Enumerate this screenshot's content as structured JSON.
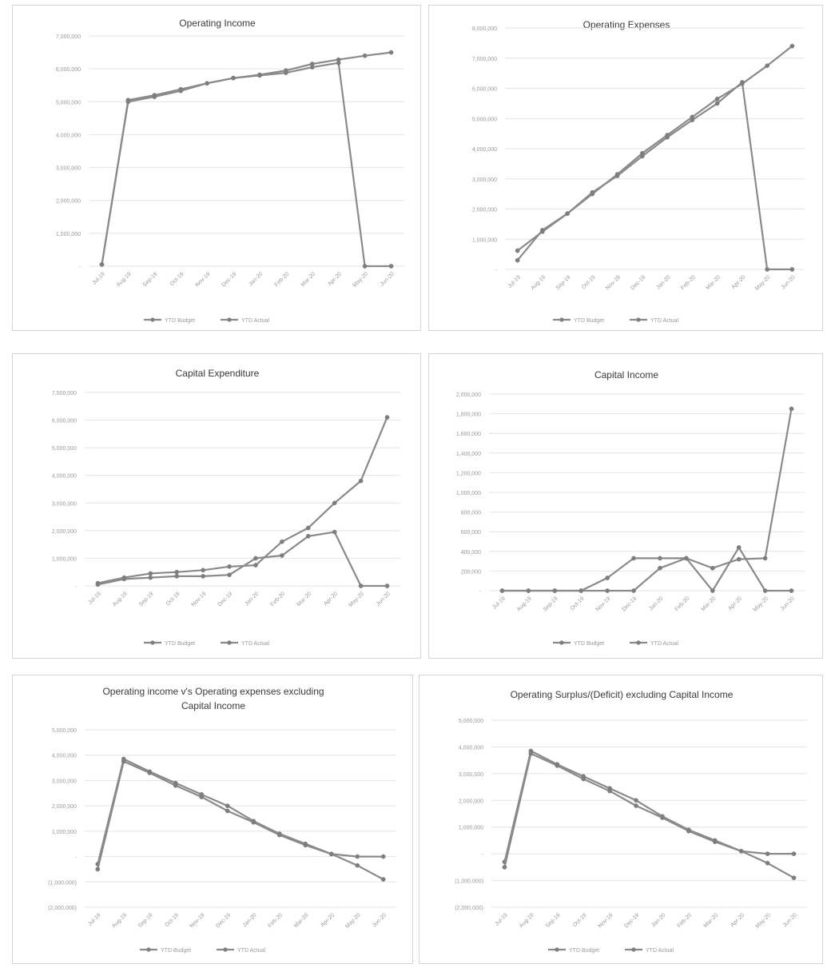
{
  "chart_data": [
    {
      "type": "line",
      "title": [
        "Operating Income"
      ],
      "categories": [
        "Jul-19",
        "Aug-19",
        "Sep-19",
        "Oct-19",
        "Nov-19",
        "Dec-19",
        "Jan-20",
        "Feb-20",
        "Mar-20",
        "Apr-20",
        "May-20",
        "Jun-20"
      ],
      "y_ticks": [
        "-",
        "1,000,000",
        "2,000,000",
        "3,000,000",
        "4,000,000",
        "5,000,000",
        "6,000,000",
        "7,000,000"
      ],
      "ylim": [
        0,
        7000000
      ],
      "series": [
        {
          "name": "YTD Budget",
          "values": [
            50000,
            5050000,
            5200000,
            5380000,
            5560000,
            5720000,
            5820000,
            5950000,
            6150000,
            6280000,
            6400000,
            6500000
          ]
        },
        {
          "name": "YTD Actual",
          "values": [
            50000,
            5000000,
            5150000,
            5330000,
            5560000,
            5720000,
            5800000,
            5880000,
            6050000,
            6180000,
            0,
            0
          ]
        }
      ],
      "legend": "bottom"
    },
    {
      "type": "line",
      "title": [
        "Operating Expenses"
      ],
      "categories": [
        "Jul-19",
        "Aug-19",
        "Sep-19",
        "Oct-19",
        "Nov-19",
        "Dec-19",
        "Jan-20",
        "Feb-20",
        "Mar-20",
        "Apr-20",
        "May-20",
        "Jun-20"
      ],
      "y_ticks": [
        "-",
        "1,000,000",
        "2,000,000",
        "3,000,000",
        "4,000,000",
        "5,000,000",
        "6,000,000",
        "7,000,000",
        "8,000,000"
      ],
      "ylim": [
        0,
        8000000
      ],
      "series": [
        {
          "name": "YTD Budget",
          "values": [
            300000,
            1300000,
            1850000,
            2500000,
            3150000,
            3850000,
            4450000,
            5050000,
            5650000,
            6150000,
            6750000,
            7400000
          ]
        },
        {
          "name": "YTD Actual",
          "values": [
            620000,
            1250000,
            1850000,
            2550000,
            3100000,
            3750000,
            4380000,
            4950000,
            5500000,
            6200000,
            0,
            0
          ]
        }
      ],
      "legend": "bottom"
    },
    {
      "type": "line",
      "title": [
        "Capital Expenditure"
      ],
      "categories": [
        "Jul-19",
        "Aug-19",
        "Sep-19",
        "Oct-19",
        "Nov-19",
        "Dec-19",
        "Jan-20",
        "Feb-20",
        "Mar-20",
        "Apr-20",
        "May-20",
        "Jun-20"
      ],
      "y_ticks": [
        "-",
        "1,000,000",
        "2,000,000",
        "3,000,000",
        "4,000,000",
        "5,000,000",
        "6,000,000",
        "7,000,000"
      ],
      "ylim": [
        0,
        7000000
      ],
      "series": [
        {
          "name": "YTD Budget",
          "values": [
            100000,
            300000,
            450000,
            500000,
            570000,
            700000,
            750000,
            1600000,
            2100000,
            3000000,
            3800000,
            6100000
          ]
        },
        {
          "name": "YTD Actual",
          "values": [
            50000,
            250000,
            300000,
            350000,
            350000,
            400000,
            1000000,
            1100000,
            1800000,
            1950000,
            0,
            0
          ]
        }
      ],
      "legend": "bottom"
    },
    {
      "type": "line",
      "title": [
        "Capital Income"
      ],
      "categories": [
        "Jul-19",
        "Aug-19",
        "Sep-19",
        "Oct-19",
        "Nov-19",
        "Dec-19",
        "Jan-20",
        "Feb-20",
        "Mar-20",
        "Apr-20",
        "May-20",
        "Jun-20"
      ],
      "y_ticks": [
        "-",
        "200,000",
        "400,000",
        "600,000",
        "800,000",
        "1,000,000",
        "1,200,000",
        "1,400,000",
        "1,600,000",
        "1,800,000",
        "2,000,000"
      ],
      "ylim": [
        0,
        2000000
      ],
      "series": [
        {
          "name": "YTD Budget",
          "values": [
            0,
            0,
            0,
            0,
            0,
            0,
            230000,
            330000,
            230000,
            320000,
            330000,
            1850000
          ]
        },
        {
          "name": "YTD Actual",
          "values": [
            0,
            0,
            0,
            0,
            130000,
            330000,
            330000,
            330000,
            0,
            440000,
            0,
            0
          ]
        }
      ],
      "legend": "bottom"
    },
    {
      "type": "line",
      "title": [
        "Operating income v's Operating expenses excluding",
        "Capital Income"
      ],
      "categories": [
        "Jul-19",
        "Aug-19",
        "Sep-19",
        "Oct-19",
        "Nov-19",
        "Dec-19",
        "Jan-20",
        "Feb-20",
        "Mar-20",
        "Apr-20",
        "May-20",
        "Jun-20"
      ],
      "y_ticks": [
        "(2,000,000)",
        "(1,000,000)",
        "-",
        "1,000,000",
        "2,000,000",
        "3,000,000",
        "4,000,000",
        "5,000,000"
      ],
      "ylim": [
        -2000000,
        5000000
      ],
      "series": [
        {
          "name": "YTD Budget",
          "values": [
            -300000,
            3850000,
            3350000,
            2900000,
            2450000,
            2000000,
            1400000,
            900000,
            500000,
            100000,
            -350000,
            -900000
          ]
        },
        {
          "name": "YTD Actual",
          "values": [
            -500000,
            3750000,
            3300000,
            2800000,
            2350000,
            1800000,
            1350000,
            850000,
            450000,
            100000,
            0,
            0
          ]
        }
      ],
      "legend": "bottom"
    },
    {
      "type": "line",
      "title": [
        "Operating Surplus/(Deficit) excluding Capital Income"
      ],
      "categories": [
        "Jul-19",
        "Aug-19",
        "Sep-19",
        "Oct-19",
        "Nov-19",
        "Dec-19",
        "Jan-20",
        "Feb-20",
        "Mar-20",
        "Apr-20",
        "May-20",
        "Jun-20"
      ],
      "y_ticks": [
        "(2,000,000)",
        "(1,000,000)",
        "-",
        "1,000,000",
        "2,000,000",
        "3,000,000",
        "4,000,000",
        "5,000,000"
      ],
      "ylim": [
        -2000000,
        5000000
      ],
      "series": [
        {
          "name": "YTD Budget",
          "values": [
            -300000,
            3850000,
            3350000,
            2900000,
            2450000,
            2000000,
            1400000,
            900000,
            500000,
            100000,
            -350000,
            -900000
          ]
        },
        {
          "name": "YTD Actual",
          "values": [
            -500000,
            3750000,
            3300000,
            2800000,
            2350000,
            1800000,
            1350000,
            850000,
            450000,
            100000,
            0,
            0
          ]
        }
      ],
      "legend": "bottom"
    }
  ]
}
